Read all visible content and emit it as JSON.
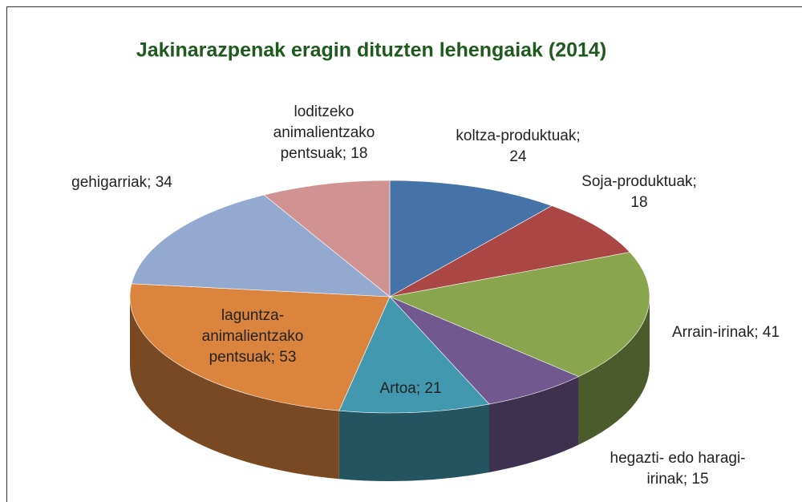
{
  "chart_data": {
    "type": "pie3d",
    "title": "Jakinarazpenak eragin dituzten lehengaiak (2014)",
    "values": [
      24,
      18,
      41,
      15,
      21,
      53,
      34,
      18
    ],
    "value_labels": [
      "koltza-produktuak; 24",
      "Soja-produktuak; 18",
      "Arrain-irinak; 41",
      "hegazti- edo haragi-irinak; 15",
      "Artoa; 21",
      "laguntza-animalientzako pentsuak; 53",
      "gehigarriak; 34",
      "loditzeko animalientzako pentsuak; 18"
    ],
    "colors": [
      "#4572a7",
      "#aa4643",
      "#89a54e",
      "#71588f",
      "#4198af",
      "#db843d",
      "#93a9cf",
      "#d19392"
    ]
  }
}
